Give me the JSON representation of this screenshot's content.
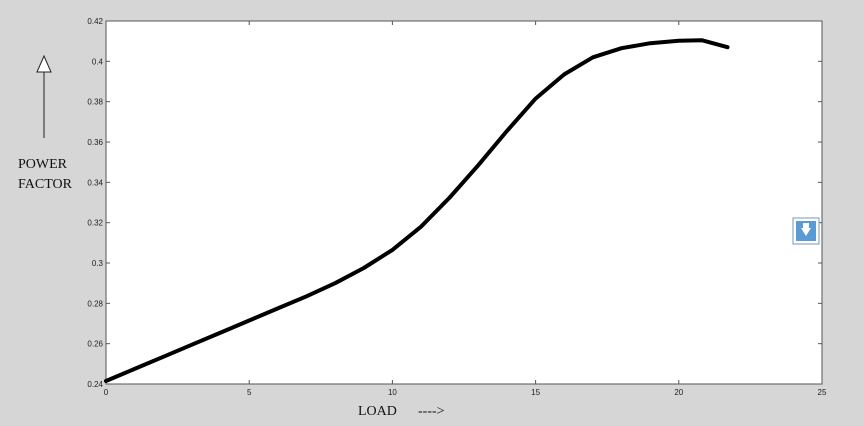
{
  "figure": {
    "background": "#d6d6d6",
    "axes_background": "#ffffff",
    "line_color": "#000000",
    "button_color": "#5b9bd5"
  },
  "annotations": {
    "ylabel_line1": "POWER",
    "ylabel_line2": "FACTOR",
    "xlabel": "LOAD",
    "xlabel_arrow": "---->"
  },
  "toolbar": {
    "dock_button_icon": "down-arrow-icon"
  },
  "chart_data": {
    "type": "line",
    "title": "",
    "xlabel": "LOAD",
    "ylabel": "POWER FACTOR",
    "xlim": [
      0,
      25
    ],
    "ylim": [
      0.24,
      0.42
    ],
    "xticks": [
      0,
      5,
      10,
      15,
      20,
      25
    ],
    "yticks": [
      0.24,
      0.26,
      0.28,
      0.3,
      0.32,
      0.34,
      0.36,
      0.38,
      0.4,
      0.42
    ],
    "grid": false,
    "series": [
      {
        "x": [
          0,
          1,
          2,
          3,
          4,
          5,
          6,
          7,
          8,
          9,
          10,
          11,
          12,
          13,
          14,
          15,
          16,
          17,
          18,
          19,
          20,
          20.8,
          21.7
        ],
        "y": [
          0.2415,
          0.2475,
          0.2535,
          0.2595,
          0.2655,
          0.2715,
          0.2775,
          0.2835,
          0.29,
          0.2975,
          0.3065,
          0.318,
          0.3325,
          0.3485,
          0.3655,
          0.3815,
          0.3935,
          0.402,
          0.4065,
          0.409,
          0.4102,
          0.4105,
          0.407
        ]
      }
    ]
  }
}
